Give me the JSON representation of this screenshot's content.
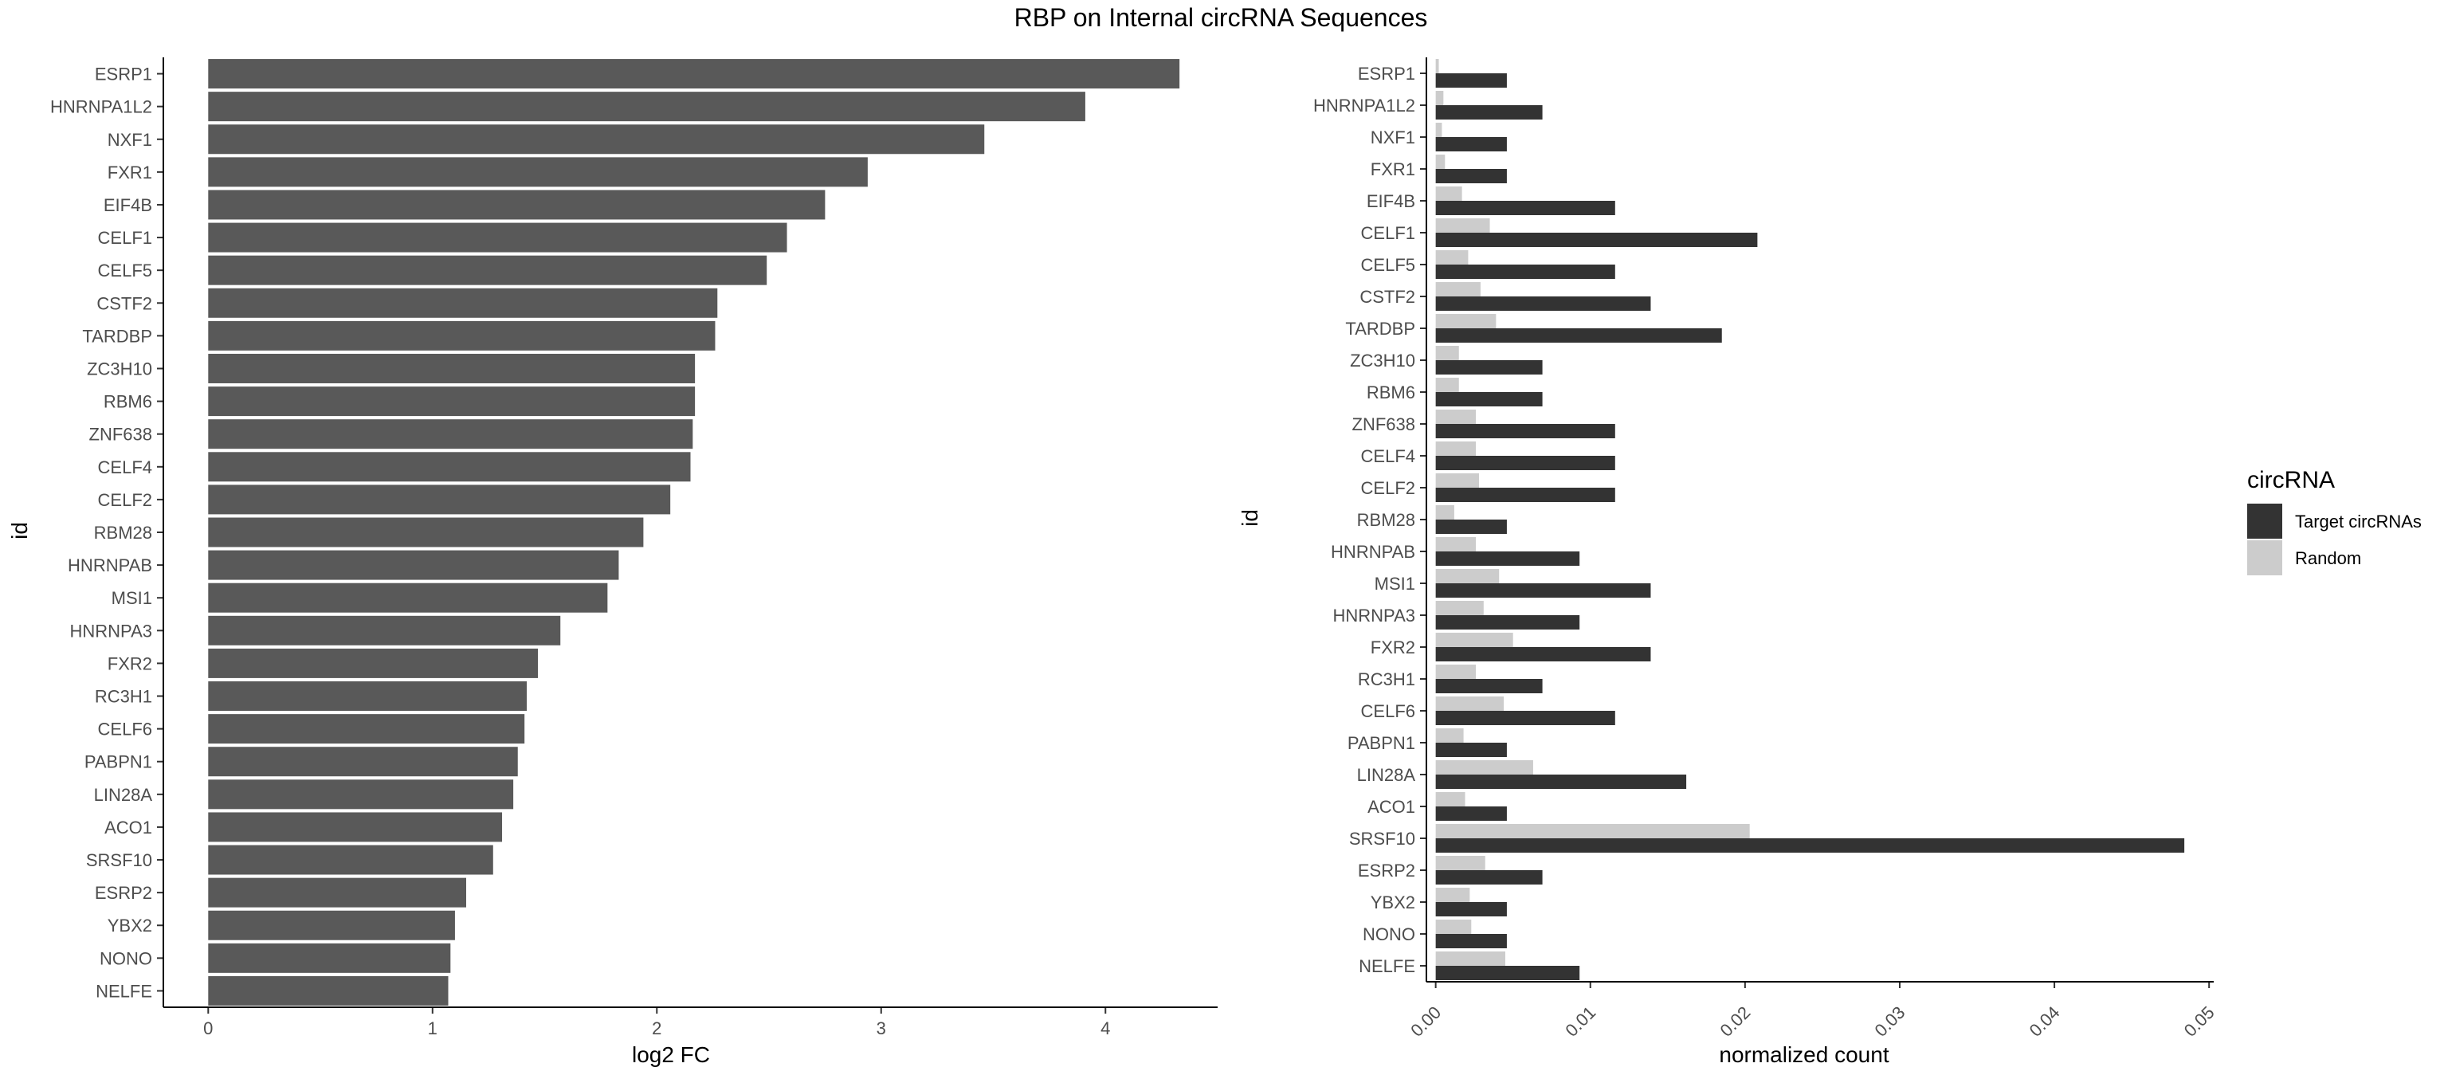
{
  "title": "RBP on Internal circRNA Sequences",
  "colors": {
    "bar": "#595959",
    "target": "#333333",
    "random": "#cccccc",
    "axis": "#000000"
  },
  "chart_data": [
    {
      "type": "bar",
      "orientation": "horizontal",
      "xlabel": "log2 FC",
      "ylabel": "id",
      "xlim": [
        -0.2,
        4.5
      ],
      "xticks": [
        "0",
        "1",
        "2",
        "3",
        "4"
      ],
      "grid": false,
      "categories": [
        "ESRP1",
        "HNRNPA1L2",
        "NXF1",
        "FXR1",
        "EIF4B",
        "CELF1",
        "CELF5",
        "CSTF2",
        "TARDBP",
        "ZC3H10",
        "RBM6",
        "ZNF638",
        "CELF4",
        "CELF2",
        "RBM28",
        "HNRNPAB",
        "MSI1",
        "HNRNPA3",
        "FXR2",
        "RC3H1",
        "CELF6",
        "PABPN1",
        "LIN28A",
        "ACO1",
        "SRSF10",
        "ESRP2",
        "YBX2",
        "NONO",
        "NELFE"
      ],
      "values": [
        4.33,
        3.91,
        3.46,
        2.94,
        2.75,
        2.58,
        2.49,
        2.27,
        2.26,
        2.17,
        2.17,
        2.16,
        2.15,
        2.06,
        1.94,
        1.83,
        1.78,
        1.57,
        1.47,
        1.42,
        1.41,
        1.38,
        1.36,
        1.31,
        1.27,
        1.15,
        1.1,
        1.08,
        1.07
      ]
    },
    {
      "type": "bar",
      "orientation": "horizontal",
      "xlabel": "normalized count",
      "ylabel": "id",
      "xlim": [
        -0.0006,
        0.0503
      ],
      "xticks": [
        "0.00",
        "0.01",
        "0.02",
        "0.03",
        "0.04",
        "0.05"
      ],
      "grid": false,
      "legend": {
        "title": "circRNA",
        "position": "right"
      },
      "categories": [
        "ESRP1",
        "HNRNPA1L2",
        "NXF1",
        "FXR1",
        "EIF4B",
        "CELF1",
        "CELF5",
        "CSTF2",
        "TARDBP",
        "ZC3H10",
        "RBM6",
        "ZNF638",
        "CELF4",
        "CELF2",
        "RBM28",
        "HNRNPAB",
        "MSI1",
        "HNRNPA3",
        "FXR2",
        "RC3H1",
        "CELF6",
        "PABPN1",
        "LIN28A",
        "ACO1",
        "SRSF10",
        "ESRP2",
        "YBX2",
        "NONO",
        "NELFE"
      ],
      "series": [
        {
          "name": "Target circRNAs",
          "values": [
            0.0046,
            0.0069,
            0.0046,
            0.0046,
            0.0116,
            0.0208,
            0.0116,
            0.0139,
            0.0185,
            0.0069,
            0.0069,
            0.0116,
            0.0116,
            0.0116,
            0.0046,
            0.0093,
            0.0139,
            0.0093,
            0.0139,
            0.0069,
            0.0116,
            0.0046,
            0.0162,
            0.0046,
            0.0484,
            0.0069,
            0.0046,
            0.0046,
            0.0093
          ]
        },
        {
          "name": "Random",
          "values": [
            0.0002,
            0.0005,
            0.0004,
            0.0006,
            0.0017,
            0.0035,
            0.0021,
            0.0029,
            0.0039,
            0.0015,
            0.0015,
            0.0026,
            0.0026,
            0.0028,
            0.0012,
            0.0026,
            0.0041,
            0.0031,
            0.005,
            0.0026,
            0.0044,
            0.0018,
            0.0063,
            0.0019,
            0.0203,
            0.0032,
            0.0022,
            0.0023,
            0.0045
          ]
        }
      ]
    }
  ]
}
